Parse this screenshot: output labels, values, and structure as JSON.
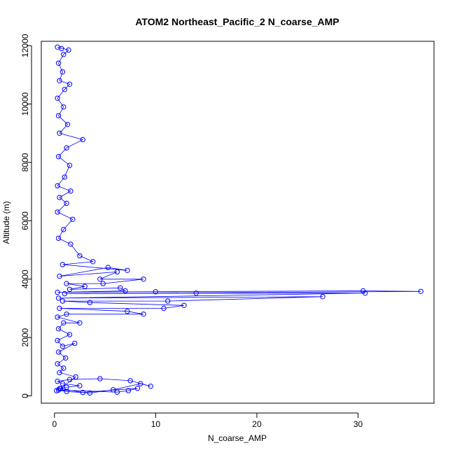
{
  "chart_data": {
    "type": "line",
    "title": "ATOM2 Northeast_Pacific_2 N_coarse_AMP",
    "xlabel": "N_coarse_AMP",
    "ylabel": "Altitude (m)",
    "xlim": [
      -1.3,
      37.5
    ],
    "ylim": [
      -250,
      12150
    ],
    "xticks": [
      0,
      10,
      20,
      30
    ],
    "yticks": [
      0,
      2000,
      4000,
      6000,
      8000,
      10000,
      12000
    ],
    "xtick_labels": [
      "0",
      "10",
      "20",
      "30"
    ],
    "ytick_labels": [
      "0",
      "2000",
      "4000",
      "6000",
      "8000",
      "10000",
      "12000"
    ],
    "marker": "open-circle",
    "color": "#0000ff",
    "series": [
      {
        "points": [
          [
            0.2,
            180
          ],
          [
            0.5,
            250
          ],
          [
            1.2,
            300
          ],
          [
            2.5,
            350
          ],
          [
            0.8,
            420
          ],
          [
            0.3,
            500
          ],
          [
            1.5,
            560
          ],
          [
            4.5,
            590
          ],
          [
            7.5,
            520
          ],
          [
            9.5,
            330
          ],
          [
            8.5,
            420
          ],
          [
            5.8,
            210
          ],
          [
            3.5,
            100
          ],
          [
            1.2,
            150
          ],
          [
            0.4,
            200
          ],
          [
            6.2,
            130
          ],
          [
            7.3,
            180
          ],
          [
            8.2,
            260
          ],
          [
            2.8,
            120
          ],
          [
            0.6,
            250
          ],
          [
            2.1,
            650
          ],
          [
            0.5,
            800
          ],
          [
            0.9,
            950
          ],
          [
            0.3,
            1100
          ],
          [
            1.1,
            1300
          ],
          [
            0.4,
            1500
          ],
          [
            2.0,
            1800
          ],
          [
            0.8,
            1700
          ],
          [
            0.3,
            1900
          ],
          [
            1.5,
            2100
          ],
          [
            0.4,
            2300
          ],
          [
            0.9,
            2500
          ],
          [
            2.5,
            2500
          ],
          [
            0.3,
            2700
          ],
          [
            1.2,
            2800
          ],
          [
            8.8,
            2800
          ],
          [
            7.2,
            2900
          ],
          [
            0.5,
            3000
          ],
          [
            10.8,
            3000
          ],
          [
            12.8,
            3100
          ],
          [
            3.5,
            3200
          ],
          [
            0.8,
            3250
          ],
          [
            11.2,
            3250
          ],
          [
            26.5,
            3400
          ],
          [
            0.4,
            3350
          ],
          [
            30.7,
            3520
          ],
          [
            14.0,
            3520
          ],
          [
            1.0,
            3500
          ],
          [
            36.2,
            3580
          ],
          [
            30.5,
            3600
          ],
          [
            10.0,
            3570
          ],
          [
            0.3,
            3550
          ],
          [
            7.0,
            3600
          ],
          [
            6.5,
            3700
          ],
          [
            1.5,
            3650
          ],
          [
            3.0,
            3750
          ],
          [
            1.2,
            3850
          ],
          [
            4.8,
            3850
          ],
          [
            8.8,
            4000
          ],
          [
            4.5,
            4000
          ],
          [
            6.2,
            4250
          ],
          [
            0.5,
            4100
          ],
          [
            5.3,
            4400
          ],
          [
            7.2,
            4300
          ],
          [
            0.8,
            4500
          ],
          [
            3.8,
            4600
          ],
          [
            2.5,
            4800
          ],
          [
            1.6,
            5200
          ],
          [
            0.4,
            5400
          ],
          [
            0.9,
            5700
          ],
          [
            1.8,
            6050
          ],
          [
            0.3,
            6300
          ],
          [
            1.2,
            6600
          ],
          [
            0.5,
            6800
          ],
          [
            1.6,
            7020
          ],
          [
            0.3,
            7200
          ],
          [
            1.0,
            7500
          ],
          [
            1.5,
            7900
          ],
          [
            0.4,
            8200
          ],
          [
            1.2,
            8500
          ],
          [
            2.8,
            8780
          ],
          [
            0.5,
            9000
          ],
          [
            1.3,
            9300
          ],
          [
            0.4,
            9600
          ],
          [
            0.9,
            9900
          ],
          [
            0.3,
            10200
          ],
          [
            1.0,
            10500
          ],
          [
            1.5,
            10680
          ],
          [
            0.5,
            10800
          ],
          [
            0.8,
            11100
          ],
          [
            0.4,
            11400
          ],
          [
            0.9,
            11700
          ],
          [
            1.4,
            11850
          ],
          [
            0.3,
            11950
          ],
          [
            0.7,
            11900
          ]
        ]
      }
    ]
  }
}
